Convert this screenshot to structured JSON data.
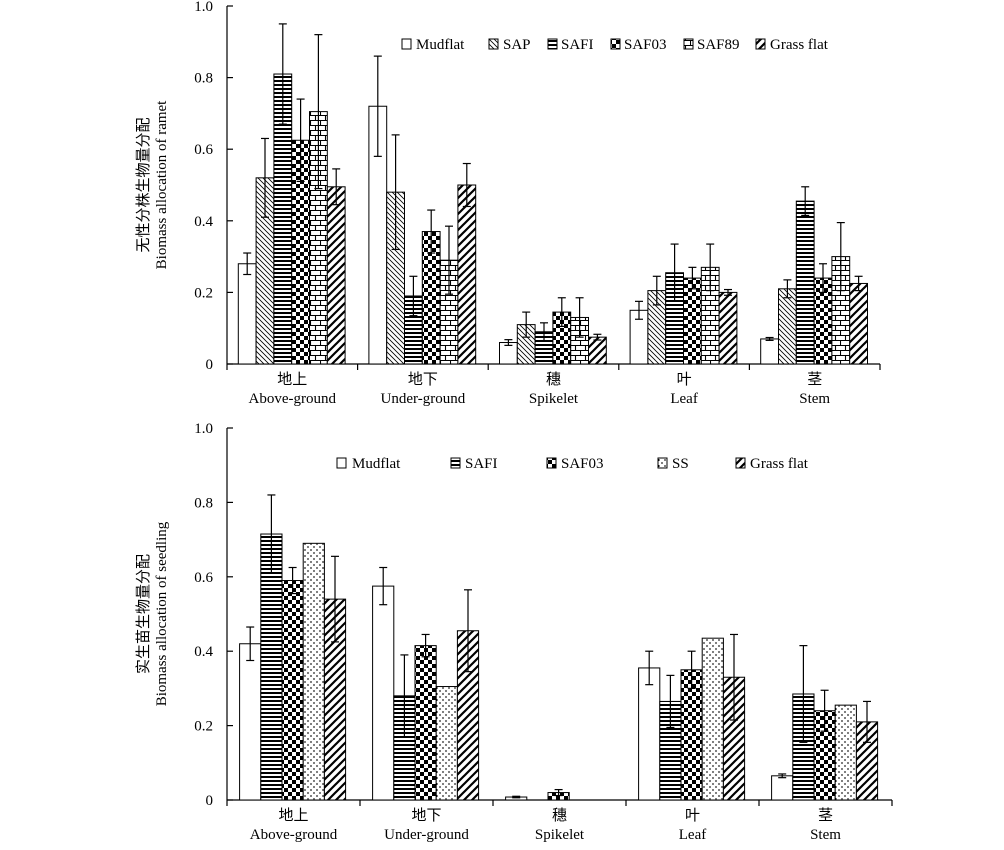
{
  "pattern_colors": {
    "stroke": "#000000",
    "fill": "#ffffff"
  },
  "chart_data": [
    {
      "type": "bar",
      "ylabel_cn": "无性分株生物量分配",
      "ylabel_en": "Biomass allocation of ramet",
      "ylim": [
        0,
        1.0
      ],
      "yticks": [
        "0",
        "0.2",
        "0.4",
        "0.6",
        "0.8",
        "1.0"
      ],
      "categories_cn": [
        "地上",
        "地下",
        "穗",
        "叶",
        "茎"
      ],
      "categories_en": [
        "Above-ground",
        "Under-ground",
        "Spikelet",
        "Leaf",
        "Stem"
      ],
      "legend_position": "top-right",
      "series": [
        {
          "name": "Mudflat",
          "pattern": "mudflat",
          "values": [
            0.28,
            0.72,
            0.06,
            0.15,
            0.07
          ],
          "errors": [
            0.03,
            0.14,
            0.008,
            0.025,
            0.004
          ]
        },
        {
          "name": "SAP",
          "pattern": "sap",
          "values": [
            0.52,
            0.48,
            0.11,
            0.205,
            0.21
          ],
          "errors": [
            0.11,
            0.16,
            0.035,
            0.04,
            0.025
          ]
        },
        {
          "name": "SAFI",
          "pattern": "safi",
          "values": [
            0.81,
            0.19,
            0.09,
            0.255,
            0.455
          ],
          "errors": [
            0.14,
            0.055,
            0.025,
            0.08,
            0.04
          ]
        },
        {
          "name": "SAF03",
          "pattern": "saf03",
          "values": [
            0.625,
            0.37,
            0.145,
            0.24,
            0.24
          ],
          "errors": [
            0.115,
            0.06,
            0.04,
            0.03,
            0.04
          ]
        },
        {
          "name": "SAF89",
          "pattern": "saf89",
          "values": [
            0.705,
            0.29,
            0.13,
            0.27,
            0.3
          ],
          "errors": [
            0.215,
            0.095,
            0.055,
            0.065,
            0.095
          ]
        },
        {
          "name": "Grass flat",
          "pattern": "grass",
          "values": [
            0.495,
            0.5,
            0.075,
            0.2,
            0.225
          ],
          "errors": [
            0.05,
            0.06,
            0.008,
            0.008,
            0.02
          ]
        }
      ]
    },
    {
      "type": "bar",
      "ylabel_cn": "实生苗生物量分配",
      "ylabel_en": "Biomass allocation of seedling",
      "ylim": [
        0,
        1.0
      ],
      "yticks": [
        "0",
        "0.2",
        "0.4",
        "0.6",
        "0.8",
        "1.0"
      ],
      "categories_cn": [
        "地上",
        "地下",
        "穗",
        "叶",
        "茎"
      ],
      "categories_en": [
        "Above-ground",
        "Under-ground",
        "Spikelet",
        "Leaf",
        "Stem"
      ],
      "legend_position": "top-right",
      "series": [
        {
          "name": "Mudflat",
          "pattern": "mudflat",
          "values": [
            0.42,
            0.575,
            0.008,
            0.355,
            0.065
          ],
          "errors": [
            0.045,
            0.05,
            0.002,
            0.045,
            0.005
          ]
        },
        {
          "name": "SAFI",
          "pattern": "safi",
          "values": [
            0.715,
            0.28,
            null,
            0.265,
            0.285
          ],
          "errors": [
            0.105,
            0.11,
            null,
            0.07,
            0.13
          ]
        },
        {
          "name": "SAF03",
          "pattern": "saf03",
          "values": [
            0.59,
            0.415,
            0.02,
            0.35,
            0.24
          ],
          "errors": [
            0.035,
            0.03,
            0.008,
            0.05,
            0.055
          ]
        },
        {
          "name": "SS",
          "pattern": "ss",
          "values": [
            0.69,
            0.305,
            null,
            0.435,
            0.255
          ],
          "errors": [
            0,
            0,
            null,
            0,
            0
          ]
        },
        {
          "name": "Grass flat",
          "pattern": "grass",
          "values": [
            0.54,
            0.455,
            null,
            0.33,
            0.21
          ],
          "errors": [
            0.115,
            0.11,
            null,
            0.115,
            0.055
          ]
        }
      ]
    }
  ]
}
